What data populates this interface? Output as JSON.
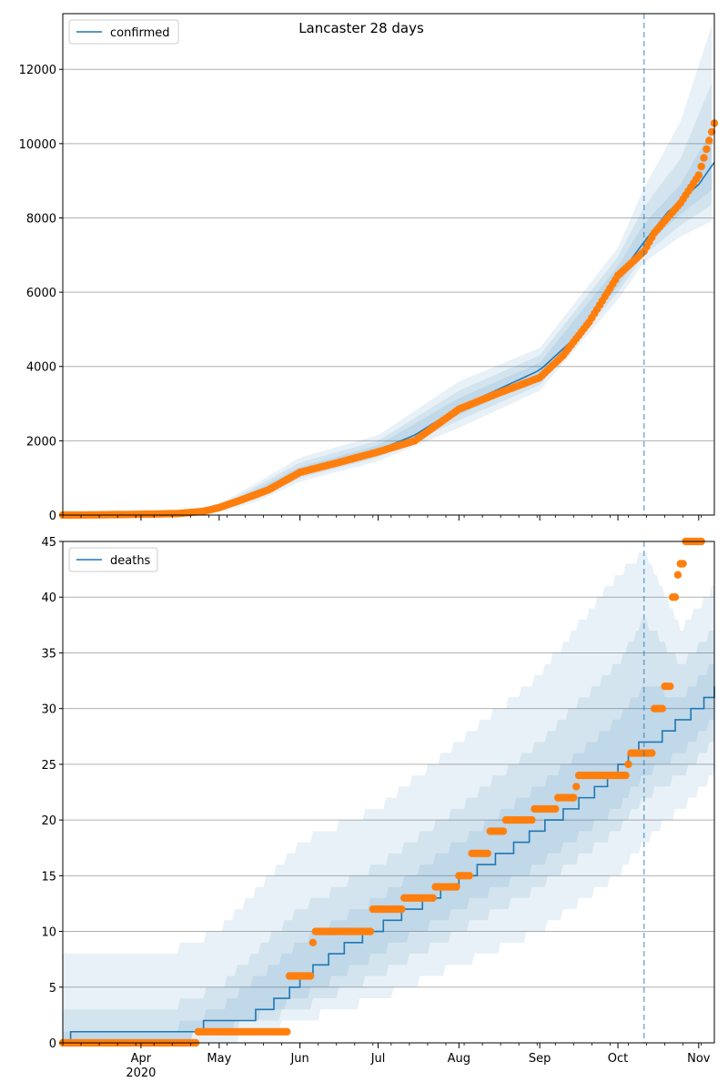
{
  "title": "Lancaster 28 days",
  "colors": {
    "model": "#1f77b4",
    "observed": "#ff7f0e",
    "band": "#1f77b4",
    "grid": "#b0b0b0",
    "cutoff": "#1f77b4"
  },
  "x_axis": {
    "start": "2020-03-02",
    "end": "2020-11-07",
    "major_ticks": [
      {
        "date": "2020-04-01",
        "label": "Apr"
      },
      {
        "date": "2020-05-01",
        "label": "May"
      },
      {
        "date": "2020-06-01",
        "label": "Jun"
      },
      {
        "date": "2020-07-01",
        "label": "Jul"
      },
      {
        "date": "2020-08-01",
        "label": "Aug"
      },
      {
        "date": "2020-09-01",
        "label": "Sep"
      },
      {
        "date": "2020-10-01",
        "label": "Oct"
      },
      {
        "date": "2020-11-01",
        "label": "Nov"
      }
    ],
    "year_label": "2020",
    "cutoff_date": "2020-10-11"
  },
  "chart_data": [
    {
      "type": "line",
      "legend": "confirmed",
      "legend_position": "top-left",
      "ylim": [
        0,
        13500
      ],
      "yticks": [
        0,
        2000,
        4000,
        6000,
        8000,
        10000,
        12000
      ],
      "grid": true,
      "model": [
        [
          "2020-03-02",
          0
        ],
        [
          "2020-04-15",
          20
        ],
        [
          "2020-04-30",
          150
        ],
        [
          "2020-05-10",
          420
        ],
        [
          "2020-05-20",
          700
        ],
        [
          "2020-06-01",
          1150
        ],
        [
          "2020-06-15",
          1400
        ],
        [
          "2020-07-01",
          1750
        ],
        [
          "2020-07-15",
          2150
        ],
        [
          "2020-08-01",
          2900
        ],
        [
          "2020-08-15",
          3350
        ],
        [
          "2020-09-01",
          3900
        ],
        [
          "2020-09-15",
          4800
        ],
        [
          "2020-10-01",
          6400
        ],
        [
          "2020-10-11",
          7350
        ],
        [
          "2020-10-20",
          8150
        ],
        [
          "2020-11-01",
          8900
        ],
        [
          "2020-11-07",
          9500
        ]
      ],
      "bands": [
        {
          "upper": [
            [
              "2020-03-02",
              0
            ],
            [
              "2020-04-15",
              60
            ],
            [
              "2020-05-01",
              300
            ],
            [
              "2020-05-15",
              850
            ],
            [
              "2020-06-01",
              1550
            ],
            [
              "2020-07-01",
              2150
            ],
            [
              "2020-08-01",
              3600
            ],
            [
              "2020-09-01",
              4500
            ],
            [
              "2020-10-01",
              7200
            ],
            [
              "2020-10-11",
              8800
            ],
            [
              "2020-10-25",
              10600
            ],
            [
              "2020-11-07",
              13400
            ]
          ],
          "lower": [
            [
              "2020-03-02",
              0
            ],
            [
              "2020-04-15",
              0
            ],
            [
              "2020-05-01",
              80
            ],
            [
              "2020-05-15",
              350
            ],
            [
              "2020-06-01",
              900
            ],
            [
              "2020-07-01",
              1450
            ],
            [
              "2020-08-01",
              2350
            ],
            [
              "2020-09-01",
              3350
            ],
            [
              "2020-10-01",
              5800
            ],
            [
              "2020-10-11",
              6800
            ],
            [
              "2020-10-25",
              7500
            ],
            [
              "2020-11-07",
              7950
            ]
          ]
        },
        {
          "upper": [
            [
              "2020-03-02",
              0
            ],
            [
              "2020-04-15",
              45
            ],
            [
              "2020-05-01",
              250
            ],
            [
              "2020-05-15",
              760
            ],
            [
              "2020-06-01",
              1420
            ],
            [
              "2020-07-01",
              2000
            ],
            [
              "2020-08-01",
              3350
            ],
            [
              "2020-09-01",
              4300
            ],
            [
              "2020-10-01",
              6950
            ],
            [
              "2020-10-11",
              8300
            ],
            [
              "2020-10-25",
              9600
            ],
            [
              "2020-11-07",
              11800
            ]
          ],
          "lower": [
            [
              "2020-03-02",
              0
            ],
            [
              "2020-04-15",
              5
            ],
            [
              "2020-05-01",
              110
            ],
            [
              "2020-05-15",
              430
            ],
            [
              "2020-06-01",
              1000
            ],
            [
              "2020-07-01",
              1550
            ],
            [
              "2020-08-01",
              2550
            ],
            [
              "2020-09-01",
              3500
            ],
            [
              "2020-10-01",
              6000
            ],
            [
              "2020-10-11",
              7000
            ],
            [
              "2020-10-25",
              7800
            ],
            [
              "2020-11-07",
              8400
            ]
          ]
        },
        {
          "upper": [
            [
              "2020-03-02",
              0
            ],
            [
              "2020-04-15",
              35
            ],
            [
              "2020-05-01",
              210
            ],
            [
              "2020-05-15",
              680
            ],
            [
              "2020-06-01",
              1300
            ],
            [
              "2020-07-01",
              1880
            ],
            [
              "2020-08-01",
              3150
            ],
            [
              "2020-09-01",
              4100
            ],
            [
              "2020-10-01",
              6700
            ],
            [
              "2020-10-11",
              7850
            ],
            [
              "2020-10-25",
              8900
            ],
            [
              "2020-11-07",
              10500
            ]
          ],
          "lower": [
            [
              "2020-03-02",
              0
            ],
            [
              "2020-04-15",
              10
            ],
            [
              "2020-05-01",
              140
            ],
            [
              "2020-05-15",
              500
            ],
            [
              "2020-06-01",
              1080
            ],
            [
              "2020-07-01",
              1640
            ],
            [
              "2020-08-01",
              2700
            ],
            [
              "2020-09-01",
              3680
            ],
            [
              "2020-10-01",
              6150
            ],
            [
              "2020-10-11",
              7200
            ],
            [
              "2020-10-25",
              8100
            ],
            [
              "2020-11-07",
              8800
            ]
          ]
        }
      ],
      "observed": [
        [
          "2020-03-02",
          0
        ],
        [
          "2020-03-15",
          5
        ],
        [
          "2020-04-01",
          20
        ],
        [
          "2020-04-15",
          40
        ],
        [
          "2020-04-25",
          100
        ],
        [
          "2020-05-01",
          200
        ],
        [
          "2020-05-10",
          420
        ],
        [
          "2020-05-20",
          680
        ],
        [
          "2020-06-01",
          1150
        ],
        [
          "2020-06-15",
          1400
        ],
        [
          "2020-07-01",
          1700
        ],
        [
          "2020-07-15",
          2000
        ],
        [
          "2020-08-01",
          2850
        ],
        [
          "2020-08-15",
          3250
        ],
        [
          "2020-09-01",
          3700
        ],
        [
          "2020-09-10",
          4300
        ],
        [
          "2020-09-20",
          5200
        ],
        [
          "2020-10-01",
          6450
        ],
        [
          "2020-10-11",
          7100
        ],
        [
          "2020-10-15",
          7600
        ],
        [
          "2020-10-25",
          8400
        ],
        [
          "2020-11-01",
          9150
        ],
        [
          "2020-11-07",
          10550
        ]
      ]
    },
    {
      "type": "line",
      "legend": "deaths",
      "legend_position": "top-left",
      "ylim": [
        0,
        45
      ],
      "yticks": [
        0,
        5,
        10,
        15,
        20,
        25,
        30,
        35,
        40,
        45
      ],
      "grid": true,
      "model": [
        [
          "2020-03-02",
          0
        ],
        [
          "2020-03-05",
          1
        ],
        [
          "2020-04-15",
          1
        ],
        [
          "2020-04-25",
          2
        ],
        [
          "2020-05-10",
          2
        ],
        [
          "2020-05-15",
          3
        ],
        [
          "2020-05-22",
          4
        ],
        [
          "2020-05-28",
          5
        ],
        [
          "2020-06-01",
          6
        ],
        [
          "2020-06-06",
          7
        ],
        [
          "2020-06-12",
          8
        ],
        [
          "2020-06-18",
          9
        ],
        [
          "2020-06-25",
          10
        ],
        [
          "2020-07-03",
          11
        ],
        [
          "2020-07-10",
          12
        ],
        [
          "2020-07-18",
          13
        ],
        [
          "2020-07-25",
          14
        ],
        [
          "2020-08-01",
          15
        ],
        [
          "2020-08-08",
          16
        ],
        [
          "2020-08-15",
          17
        ],
        [
          "2020-08-22",
          18
        ],
        [
          "2020-08-28",
          19
        ],
        [
          "2020-09-03",
          20
        ],
        [
          "2020-09-10",
          21
        ],
        [
          "2020-09-16",
          22
        ],
        [
          "2020-09-22",
          23
        ],
        [
          "2020-09-27",
          24
        ],
        [
          "2020-10-01",
          25
        ],
        [
          "2020-10-05",
          26
        ],
        [
          "2020-10-09",
          27
        ],
        [
          "2020-10-13",
          27
        ],
        [
          "2020-10-18",
          28
        ],
        [
          "2020-10-23",
          29
        ],
        [
          "2020-10-29",
          30
        ],
        [
          "2020-11-03",
          31
        ],
        [
          "2020-11-07",
          32
        ]
      ],
      "bands": [
        {
          "upper": [
            [
              "2020-03-02",
              8
            ],
            [
              "2020-04-10",
              8
            ],
            [
              "2020-05-01",
              10
            ],
            [
              "2020-06-01",
              18
            ],
            [
              "2020-07-01",
              21
            ],
            [
              "2020-08-01",
              27
            ],
            [
              "2020-09-01",
              33
            ],
            [
              "2020-10-01",
              42
            ],
            [
              "2020-10-11",
              44
            ],
            [
              "2020-10-25",
              37
            ],
            [
              "2020-11-07",
              41
            ]
          ],
          "lower": [
            [
              "2020-03-02",
              0
            ],
            [
              "2020-04-10",
              0
            ],
            [
              "2020-05-01",
              0
            ],
            [
              "2020-06-01",
              2
            ],
            [
              "2020-07-01",
              4
            ],
            [
              "2020-08-01",
              7
            ],
            [
              "2020-09-01",
              10
            ],
            [
              "2020-10-01",
              15
            ],
            [
              "2020-10-11",
              18
            ],
            [
              "2020-10-25",
              21
            ],
            [
              "2020-11-07",
              24
            ]
          ]
        },
        {
          "upper": [
            [
              "2020-03-02",
              3
            ],
            [
              "2020-04-10",
              3
            ],
            [
              "2020-05-01",
              5
            ],
            [
              "2020-06-01",
              12
            ],
            [
              "2020-07-01",
              16
            ],
            [
              "2020-08-01",
              21
            ],
            [
              "2020-09-01",
              27
            ],
            [
              "2020-10-01",
              34
            ],
            [
              "2020-10-11",
              38
            ],
            [
              "2020-10-25",
              34
            ],
            [
              "2020-11-07",
              37
            ]
          ],
          "lower": [
            [
              "2020-03-02",
              0
            ],
            [
              "2020-04-10",
              0
            ],
            [
              "2020-05-01",
              1
            ],
            [
              "2020-06-01",
              3
            ],
            [
              "2020-07-01",
              6
            ],
            [
              "2020-08-01",
              10
            ],
            [
              "2020-09-01",
              14
            ],
            [
              "2020-10-01",
              19
            ],
            [
              "2020-10-11",
              22
            ],
            [
              "2020-10-25",
              24
            ],
            [
              "2020-11-07",
              27
            ]
          ]
        },
        {
          "upper": [
            [
              "2020-03-02",
              1
            ],
            [
              "2020-04-10",
              1
            ],
            [
              "2020-05-01",
              3
            ],
            [
              "2020-06-01",
              9
            ],
            [
              "2020-07-01",
              13
            ],
            [
              "2020-08-01",
              18
            ],
            [
              "2020-09-01",
              23
            ],
            [
              "2020-10-01",
              29
            ],
            [
              "2020-10-11",
              32
            ],
            [
              "2020-10-25",
              31
            ],
            [
              "2020-11-07",
              34
            ]
          ],
          "lower": [
            [
              "2020-03-02",
              0
            ],
            [
              "2020-04-10",
              0
            ],
            [
              "2020-05-01",
              1
            ],
            [
              "2020-06-01",
              4
            ],
            [
              "2020-07-01",
              8
            ],
            [
              "2020-08-01",
              12
            ],
            [
              "2020-09-01",
              16
            ],
            [
              "2020-10-01",
              21
            ],
            [
              "2020-10-11",
              24
            ],
            [
              "2020-10-25",
              26
            ],
            [
              "2020-11-07",
              29
            ]
          ]
        }
      ],
      "observed": [
        [
          "2020-03-02",
          0
        ],
        [
          "2020-04-22",
          0
        ],
        [
          "2020-04-23",
          1
        ],
        [
          "2020-05-27",
          1
        ],
        [
          "2020-05-28",
          6
        ],
        [
          "2020-06-05",
          6
        ],
        [
          "2020-06-06",
          9
        ],
        [
          "2020-06-07",
          10
        ],
        [
          "2020-06-28",
          10
        ],
        [
          "2020-06-29",
          12
        ],
        [
          "2020-07-10",
          12
        ],
        [
          "2020-07-11",
          13
        ],
        [
          "2020-07-22",
          13
        ],
        [
          "2020-07-23",
          14
        ],
        [
          "2020-07-31",
          14
        ],
        [
          "2020-08-01",
          15
        ],
        [
          "2020-08-05",
          15
        ],
        [
          "2020-08-06",
          17
        ],
        [
          "2020-08-12",
          17
        ],
        [
          "2020-08-13",
          19
        ],
        [
          "2020-08-18",
          19
        ],
        [
          "2020-08-19",
          20
        ],
        [
          "2020-08-29",
          20
        ],
        [
          "2020-08-30",
          21
        ],
        [
          "2020-09-07",
          21
        ],
        [
          "2020-09-08",
          22
        ],
        [
          "2020-09-14",
          22
        ],
        [
          "2020-09-15",
          23
        ],
        [
          "2020-09-16",
          24
        ],
        [
          "2020-10-04",
          24
        ],
        [
          "2020-10-05",
          25
        ],
        [
          "2020-10-06",
          26
        ],
        [
          "2020-10-14",
          26
        ],
        [
          "2020-10-15",
          30
        ],
        [
          "2020-10-18",
          30
        ],
        [
          "2020-10-19",
          32
        ],
        [
          "2020-10-21",
          32
        ],
        [
          "2020-10-22",
          40
        ],
        [
          "2020-10-23",
          40
        ],
        [
          "2020-10-24",
          42
        ],
        [
          "2020-10-25",
          43
        ],
        [
          "2020-10-26",
          43
        ],
        [
          "2020-10-27",
          45
        ],
        [
          "2020-11-02",
          45
        ]
      ]
    }
  ]
}
